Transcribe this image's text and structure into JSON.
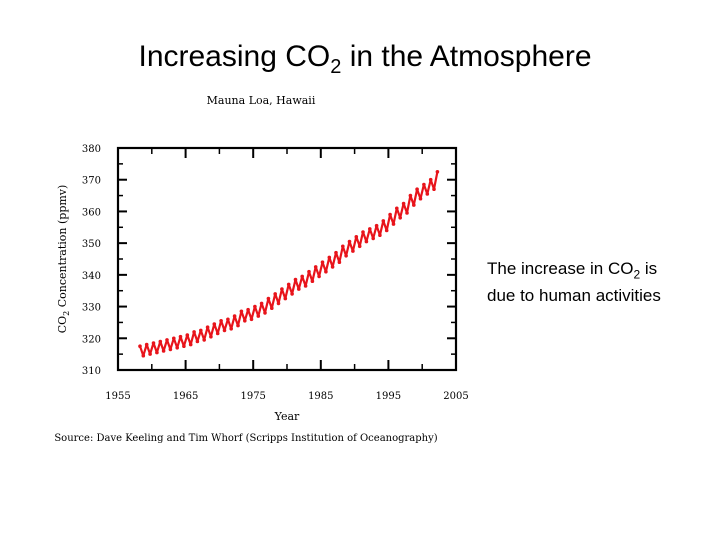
{
  "slide": {
    "title_main": "Increasing CO",
    "title_sub": "2",
    "title_tail": " in the Atmosphere",
    "note_line1_a": "The increase in CO",
    "note_line1_sub": "2",
    "note_line1_b": " is",
    "note_line2": "due to human activities"
  },
  "chart_data": {
    "type": "line",
    "title": "Mauna Loa, Hawaii",
    "xlabel": "Year",
    "ylabel_main": "CO",
    "ylabel_sub": "2",
    "ylabel_tail": " Concentration (ppmv)",
    "source": "Source: Dave Keeling and Tim Whorf (Scripps Institution of Oceanography)",
    "xlim": [
      1955,
      2005
    ],
    "ylim": [
      310,
      380
    ],
    "xticks": [
      "1955",
      "1965",
      "1975",
      "1985",
      "1995",
      "2005"
    ],
    "yticks": [
      "310",
      "320",
      "330",
      "340",
      "350",
      "360",
      "370",
      "380"
    ],
    "color": "#e8141b",
    "series": [
      {
        "x": [
          1958.25,
          1958.75,
          1959.25,
          1959.75,
          1960.25,
          1960.75,
          1961.25,
          1961.75,
          1962.25,
          1962.75,
          1963.25,
          1963.75,
          1964.25,
          1964.75,
          1965.25,
          1965.75,
          1966.25,
          1966.75,
          1967.25,
          1967.75,
          1968.25,
          1968.75,
          1969.25,
          1969.75,
          1970.25,
          1970.75,
          1971.25,
          1971.75,
          1972.25,
          1972.75,
          1973.25,
          1973.75,
          1974.25,
          1974.75,
          1975.25,
          1975.75,
          1976.25,
          1976.75,
          1977.25,
          1977.75,
          1978.25,
          1978.75,
          1979.25,
          1979.75,
          1980.25,
          1980.75,
          1981.25,
          1981.75,
          1982.25,
          1982.75,
          1983.25,
          1983.75,
          1984.25,
          1984.75,
          1985.25,
          1985.75,
          1986.25,
          1986.75,
          1987.25,
          1987.75,
          1988.25,
          1988.75,
          1989.25,
          1989.75,
          1990.25,
          1990.75,
          1991.25,
          1991.75,
          1992.25,
          1992.75,
          1993.25,
          1993.75,
          1994.25,
          1994.75,
          1995.25,
          1995.75,
          1996.25,
          1996.75,
          1997.25,
          1997.75,
          1998.25,
          1998.75,
          1999.25,
          1999.75,
          2000.25,
          2000.75,
          2001.25,
          2001.75,
          2002.25
        ],
        "values": [
          317.5,
          314.5,
          318.0,
          315.0,
          318.5,
          315.5,
          319.0,
          316.0,
          319.5,
          316.5,
          320.0,
          317.0,
          320.5,
          317.5,
          321.0,
          318.0,
          322.0,
          319.0,
          322.5,
          319.5,
          323.5,
          320.5,
          324.5,
          321.5,
          325.5,
          322.5,
          326.0,
          323.0,
          327.0,
          324.0,
          328.5,
          325.5,
          329.0,
          326.0,
          330.0,
          327.0,
          331.0,
          328.0,
          332.5,
          329.5,
          334.0,
          331.0,
          335.5,
          332.5,
          337.0,
          334.0,
          338.5,
          335.5,
          339.5,
          336.5,
          341.0,
          338.0,
          342.5,
          339.5,
          344.0,
          341.0,
          345.5,
          342.5,
          347.0,
          344.0,
          349.0,
          346.0,
          350.5,
          347.5,
          352.0,
          349.0,
          353.5,
          350.5,
          354.5,
          351.5,
          355.5,
          352.5,
          357.0,
          354.0,
          359.0,
          356.0,
          361.0,
          358.0,
          362.5,
          359.5,
          365.0,
          362.0,
          367.0,
          364.0,
          368.5,
          365.5,
          370.0,
          367.0,
          372.5
        ]
      }
    ]
  }
}
